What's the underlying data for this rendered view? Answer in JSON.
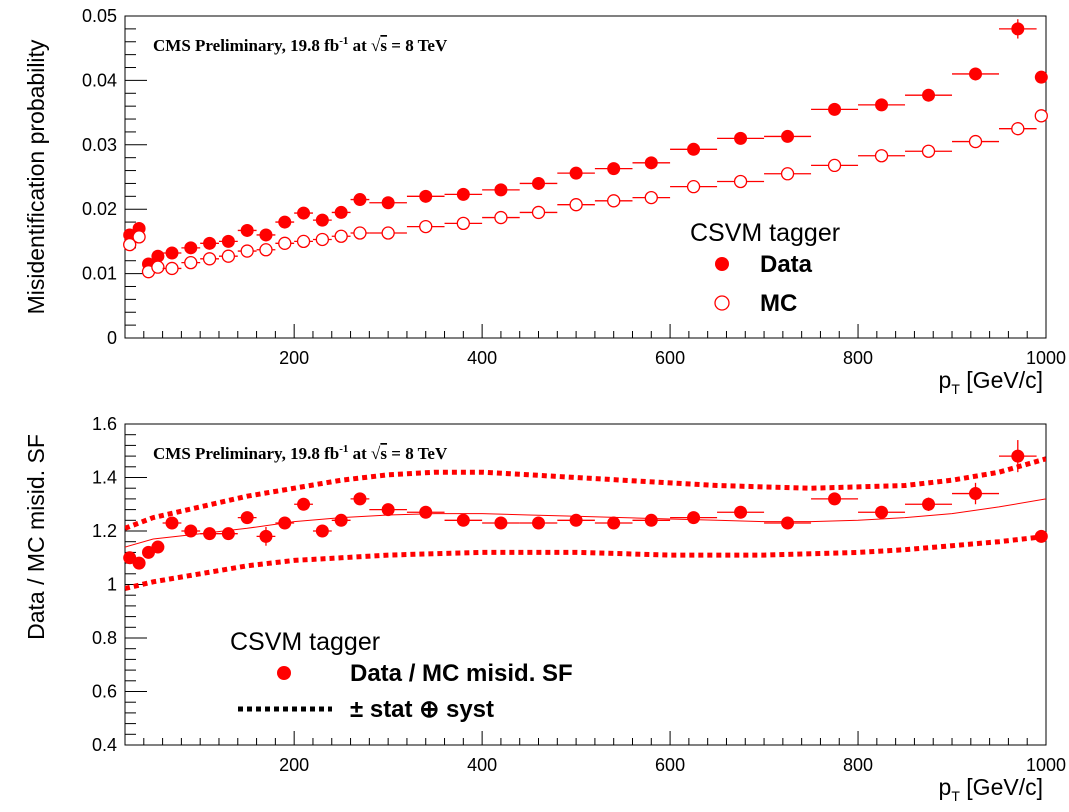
{
  "chart_data": [
    {
      "type": "scatter",
      "title": "",
      "banner": {
        "prefix": "CMS Preliminary, 19.8 fb",
        "sup": "-1",
        "mid": " at ",
        "root": "√",
        "s": "s",
        "suffix": " = 8 TeV"
      },
      "xlabel": {
        "main": "p",
        "sub": "T",
        "unit": " [GeV/c]"
      },
      "ylabel": "Misidentification probability",
      "xlim": [
        20,
        1000
      ],
      "ylim": [
        0,
        0.05
      ],
      "xticks": [
        "200",
        "400",
        "600",
        "800",
        "1000"
      ],
      "xtick_values": [
        200,
        400,
        600,
        800,
        1000
      ],
      "yticks": [
        "0",
        "0.01",
        "0.02",
        "0.03",
        "0.04",
        "0.05"
      ],
      "ytick_values": [
        0,
        0.01,
        0.02,
        0.03,
        0.04,
        0.05
      ],
      "legend": {
        "title": "CSVM tagger",
        "placement": "center-right"
      },
      "series": [
        {
          "name": "Data",
          "marker": "filled-circle",
          "color": "#ff0000",
          "x": [
            25,
            35,
            45,
            55,
            70,
            90,
            110,
            130,
            150,
            170,
            190,
            210,
            230,
            250,
            270,
            300,
            340,
            380,
            420,
            460,
            500,
            540,
            580,
            625,
            675,
            725,
            775,
            825,
            875,
            925,
            970,
            995
          ],
          "xerr": [
            5,
            5,
            5,
            5,
            10,
            10,
            10,
            10,
            10,
            10,
            10,
            10,
            10,
            10,
            10,
            20,
            20,
            20,
            20,
            20,
            20,
            20,
            20,
            25,
            25,
            25,
            25,
            25,
            25,
            25,
            20,
            5
          ],
          "y": [
            0.016,
            0.017,
            0.0115,
            0.0127,
            0.0132,
            0.014,
            0.0147,
            0.015,
            0.0167,
            0.016,
            0.018,
            0.0194,
            0.0183,
            0.0195,
            0.0215,
            0.021,
            0.022,
            0.0223,
            0.023,
            0.024,
            0.0256,
            0.0263,
            0.0272,
            0.0293,
            0.031,
            0.0313,
            0.0355,
            0.0362,
            0.0377,
            0.041,
            0.048,
            0.0405
          ],
          "yerr": [
            0.0008,
            0.0008,
            0.0005,
            0.0005,
            0.0005,
            0.0005,
            0.0005,
            0.0005,
            0.0005,
            0.0005,
            0.0005,
            0.0005,
            0.0005,
            0.0005,
            0.0005,
            0.0005,
            0.0005,
            0.0005,
            0.0005,
            0.0005,
            0.0005,
            0.0005,
            0.0005,
            0.0005,
            0.0005,
            0.0005,
            0.0005,
            0.0005,
            0.0006,
            0.001,
            0.0015,
            0.0005
          ]
        },
        {
          "name": "MC",
          "marker": "open-circle",
          "color": "#ff0000",
          "x": [
            25,
            35,
            45,
            55,
            70,
            90,
            110,
            130,
            150,
            170,
            190,
            210,
            230,
            250,
            270,
            300,
            340,
            380,
            420,
            460,
            500,
            540,
            580,
            625,
            675,
            725,
            775,
            825,
            875,
            925,
            970,
            995
          ],
          "xerr": [
            5,
            5,
            5,
            5,
            10,
            10,
            10,
            10,
            10,
            10,
            10,
            10,
            10,
            10,
            10,
            20,
            20,
            20,
            20,
            20,
            20,
            20,
            20,
            25,
            25,
            25,
            25,
            25,
            25,
            25,
            20,
            5
          ],
          "y": [
            0.0145,
            0.0157,
            0.0103,
            0.011,
            0.0108,
            0.0117,
            0.0123,
            0.0127,
            0.0135,
            0.0137,
            0.0147,
            0.015,
            0.0153,
            0.0158,
            0.0163,
            0.0163,
            0.0173,
            0.0178,
            0.0187,
            0.0195,
            0.0207,
            0.0213,
            0.0218,
            0.0235,
            0.0243,
            0.0255,
            0.0268,
            0.0283,
            0.029,
            0.0305,
            0.0325,
            0.0345
          ],
          "yerr": [
            0.0005,
            0.0005,
            0.0003,
            0.0003,
            0.0003,
            0.0003,
            0.0003,
            0.0003,
            0.0003,
            0.0003,
            0.0003,
            0.0003,
            0.0003,
            0.0003,
            0.0003,
            0.0003,
            0.0003,
            0.0003,
            0.0003,
            0.0003,
            0.0003,
            0.0003,
            0.0003,
            0.0003,
            0.0003,
            0.0003,
            0.0003,
            0.0003,
            0.0003,
            0.0003,
            0.0004,
            0.0004
          ]
        }
      ]
    },
    {
      "type": "scatter",
      "title": "",
      "banner": {
        "prefix": "CMS Preliminary, 19.8 fb",
        "sup": "-1",
        "mid": " at ",
        "root": "√",
        "s": "s",
        "suffix": " = 8 TeV"
      },
      "xlabel": {
        "main": "p",
        "sub": "T",
        "unit": " [GeV/c]"
      },
      "ylabel": "Data / MC misid. SF",
      "xlim": [
        20,
        1000
      ],
      "ylim": [
        0.4,
        1.6
      ],
      "xticks": [
        "200",
        "400",
        "600",
        "800",
        "1000"
      ],
      "xtick_values": [
        200,
        400,
        600,
        800,
        1000
      ],
      "yticks": [
        "0.4",
        "0.6",
        "0.8",
        "1",
        "1.2",
        "1.4",
        "1.6"
      ],
      "ytick_values": [
        0.4,
        0.6,
        0.8,
        1.0,
        1.2,
        1.4,
        1.6
      ],
      "legend": {
        "title": "CSVM tagger",
        "placement": "bottom-left"
      },
      "series": [
        {
          "name": "Data / MC misid. SF",
          "marker": "filled-circle",
          "color": "#ff0000",
          "x": [
            25,
            35,
            45,
            55,
            70,
            90,
            110,
            130,
            150,
            170,
            190,
            210,
            230,
            250,
            270,
            300,
            340,
            380,
            420,
            460,
            500,
            540,
            580,
            625,
            675,
            725,
            775,
            825,
            875,
            925,
            970,
            995
          ],
          "xerr": [
            5,
            5,
            5,
            5,
            10,
            10,
            10,
            10,
            10,
            10,
            10,
            10,
            10,
            10,
            10,
            20,
            20,
            20,
            20,
            20,
            20,
            20,
            20,
            25,
            25,
            25,
            25,
            25,
            25,
            25,
            20,
            5
          ],
          "y": [
            1.1,
            1.08,
            1.12,
            1.14,
            1.23,
            1.2,
            1.19,
            1.19,
            1.25,
            1.18,
            1.23,
            1.3,
            1.2,
            1.24,
            1.32,
            1.28,
            1.27,
            1.24,
            1.23,
            1.23,
            1.24,
            1.23,
            1.24,
            1.25,
            1.27,
            1.23,
            1.32,
            1.27,
            1.3,
            1.34,
            1.48,
            1.18
          ],
          "yerr": [
            0.02,
            0.02,
            0.015,
            0.015,
            0.015,
            0.015,
            0.015,
            0.015,
            0.02,
            0.035,
            0.015,
            0.02,
            0.015,
            0.015,
            0.02,
            0.015,
            0.015,
            0.015,
            0.015,
            0.015,
            0.015,
            0.015,
            0.015,
            0.015,
            0.015,
            0.015,
            0.02,
            0.02,
            0.025,
            0.04,
            0.06,
            0.02
          ]
        },
        {
          "name": "fit",
          "line": "solid",
          "color": "#ff0000",
          "x": [
            20,
            50,
            100,
            150,
            200,
            250,
            300,
            350,
            400,
            450,
            500,
            550,
            600,
            650,
            700,
            750,
            800,
            850,
            900,
            950,
            1000
          ],
          "y": [
            1.14,
            1.17,
            1.19,
            1.21,
            1.235,
            1.25,
            1.26,
            1.265,
            1.265,
            1.26,
            1.255,
            1.25,
            1.245,
            1.24,
            1.235,
            1.235,
            1.24,
            1.25,
            1.265,
            1.29,
            1.32
          ]
        },
        {
          "name": "± stat ⊕ syst",
          "line": "dotted",
          "color": "#ff0000",
          "x": [
            20,
            50,
            100,
            150,
            200,
            250,
            300,
            350,
            400,
            450,
            500,
            550,
            600,
            650,
            700,
            750,
            800,
            850,
            900,
            950,
            1000
          ],
          "y": [
            1.21,
            1.25,
            1.29,
            1.33,
            1.36,
            1.39,
            1.41,
            1.42,
            1.42,
            1.41,
            1.4,
            1.39,
            1.38,
            1.37,
            1.365,
            1.36,
            1.365,
            1.37,
            1.39,
            1.42,
            1.47
          ]
        },
        {
          "name": "± stat ⊕ syst (lower)",
          "line": "dotted",
          "color": "#ff0000",
          "x": [
            20,
            50,
            100,
            150,
            200,
            250,
            300,
            350,
            400,
            450,
            500,
            550,
            600,
            650,
            700,
            750,
            800,
            850,
            900,
            950,
            1000
          ],
          "y": [
            0.985,
            1.01,
            1.04,
            1.07,
            1.09,
            1.1,
            1.11,
            1.115,
            1.12,
            1.12,
            1.12,
            1.115,
            1.11,
            1.11,
            1.11,
            1.115,
            1.12,
            1.13,
            1.145,
            1.16,
            1.18
          ]
        }
      ],
      "legend_entries": [
        {
          "label": "Data / MC misid. SF",
          "symbol": "filled-circle"
        },
        {
          "label": "± stat ⊕ syst",
          "symbol": "dotted-line"
        }
      ]
    }
  ]
}
